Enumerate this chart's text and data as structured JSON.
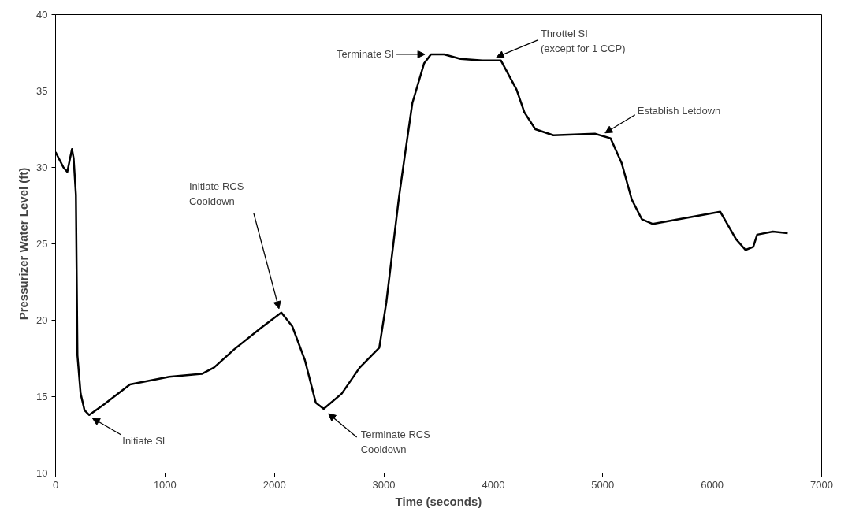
{
  "chart_data": {
    "type": "line",
    "xlabel": "Time (seconds)",
    "ylabel": "Pressurizer Water Level (ft)",
    "x": [
      0,
      72,
      107,
      150,
      165,
      186,
      193,
      200,
      229,
      265,
      308,
      444,
      680,
      1039,
      1340,
      1447,
      1633,
      1877,
      2063,
      2163,
      2278,
      2378,
      2450,
      2615,
      2779,
      2958,
      3023,
      3095,
      3137,
      3188,
      3260,
      3367,
      3430,
      3550,
      3700,
      3900,
      4000,
      4069,
      4212,
      4284,
      4384,
      4549,
      4928,
      5072,
      5172,
      5265,
      5358,
      5458,
      6074,
      6218,
      6304,
      6375,
      6411,
      6554,
      6690
    ],
    "series": [
      {
        "color": "#000000",
        "values": [
          31.0,
          30.0,
          29.7,
          31.2,
          30.6,
          28.2,
          22.9,
          17.7,
          15.2,
          14.1,
          13.8,
          14.5,
          15.8,
          16.3,
          16.5,
          16.9,
          18.1,
          19.5,
          20.5,
          19.6,
          17.4,
          14.6,
          14.2,
          15.2,
          16.9,
          18.2,
          21.2,
          25.5,
          28.0,
          30.6,
          34.2,
          36.8,
          37.4,
          37.4,
          37.1,
          37.0,
          37.0,
          37.0,
          35.1,
          33.6,
          32.5,
          32.1,
          32.2,
          31.9,
          30.3,
          27.9,
          26.6,
          26.3,
          27.1,
          25.3,
          24.6,
          24.8,
          25.6,
          25.8,
          25.7
        ]
      }
    ],
    "xlim": [
      0,
      7000
    ],
    "xticks": [
      0,
      1000,
      2000,
      3000,
      4000,
      5000,
      6000,
      7000
    ],
    "ylim": [
      10,
      40
    ],
    "yticks": [
      10,
      15,
      20,
      25,
      30,
      35,
      40
    ],
    "grid": false,
    "marker": "none",
    "line_style": "solid",
    "annotations": [
      {
        "text": "Initiate SI",
        "x": 308,
        "y": 13.8
      },
      {
        "text": "Initiate RCS\nCooldown",
        "x": 2063,
        "y": 20.5
      },
      {
        "text": "Terminate RCS\nCooldown",
        "x": 2450,
        "y": 14.2
      },
      {
        "text": "Terminate SI",
        "x": 3353,
        "y": 37.4
      },
      {
        "text": "Throttel SI\n(except for 1 CCP)",
        "x": 4000,
        "y": 37.0
      },
      {
        "text": "Establish Letdown",
        "x": 5000,
        "y": 32.1
      }
    ]
  }
}
